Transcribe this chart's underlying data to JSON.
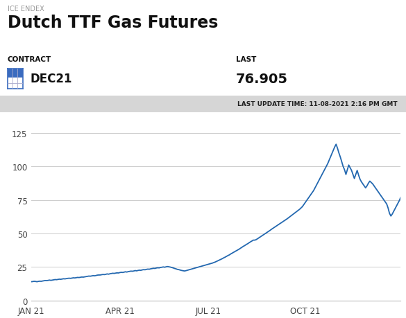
{
  "title_small": "ICE ENDEX",
  "title_large": "Dutch TTF Gas Futures",
  "contract_label": "CONTRACT",
  "contract_value": "DEC21",
  "last_label": "LAST",
  "last_value": "76.905",
  "update_text": "LAST UPDATE TIME: 11-08-2021 2:16 PM GMT",
  "line_color": "#2368b0",
  "background_color": "#ffffff",
  "gray_bar_color": "#d6d6d6",
  "yticks": [
    0,
    25,
    50,
    75,
    100,
    125
  ],
  "xtick_labels": [
    "JAN 21",
    "APR 21",
    "JUL 21",
    "OCT 21"
  ],
  "price_data": [
    14.0,
    14.1,
    14.3,
    14.2,
    14.0,
    14.2,
    14.4,
    14.3,
    14.5,
    14.7,
    14.9,
    14.8,
    15.0,
    15.2,
    15.0,
    15.2,
    15.4,
    15.6,
    15.5,
    15.7,
    15.9,
    15.8,
    16.0,
    16.2,
    16.1,
    16.3,
    16.5,
    16.6,
    16.5,
    16.7,
    16.9,
    16.8,
    17.0,
    17.2,
    17.1,
    17.3,
    17.5,
    17.4,
    17.6,
    17.8,
    18.0,
    18.2,
    18.1,
    18.3,
    18.5,
    18.4,
    18.6,
    18.9,
    19.0,
    19.0,
    19.2,
    19.4,
    19.3,
    19.5,
    19.8,
    19.6,
    19.9,
    20.1,
    20.3,
    20.2,
    20.4,
    20.6,
    20.5,
    20.8,
    21.0,
    20.9,
    21.1,
    21.4,
    21.2,
    21.5,
    21.7,
    21.9,
    21.8,
    22.0,
    22.3,
    22.1,
    22.4,
    22.6,
    22.5,
    22.8,
    23.0,
    22.9,
    23.2,
    23.4,
    23.3,
    23.6,
    23.8,
    24.0,
    23.9,
    24.2,
    24.4,
    24.3,
    24.6,
    24.8,
    25.0,
    24.8,
    25.1,
    25.3,
    25.1,
    24.9,
    24.6,
    24.3,
    23.9,
    23.6,
    23.2,
    23.0,
    22.7,
    22.4,
    22.2,
    22.0,
    22.2,
    22.5,
    22.8,
    23.1,
    23.4,
    23.7,
    24.0,
    24.3,
    24.6,
    24.9,
    25.2,
    25.5,
    25.8,
    26.1,
    26.4,
    26.7,
    27.0,
    27.3,
    27.6,
    27.9,
    28.3,
    28.7,
    29.2,
    29.7,
    30.2,
    30.7,
    31.2,
    31.8,
    32.3,
    32.9,
    33.5,
    34.0,
    34.7,
    35.3,
    35.9,
    36.5,
    37.1,
    37.7,
    38.3,
    39.0,
    39.7,
    40.4,
    41.0,
    41.7,
    42.3,
    43.0,
    43.7,
    44.3,
    45.0,
    45.0,
    45.3,
    46.0,
    46.7,
    47.4,
    48.1,
    48.8,
    49.5,
    50.2,
    50.9,
    51.6,
    52.3,
    53.1,
    53.8,
    54.5,
    55.2,
    55.9,
    56.6,
    57.3,
    58.0,
    58.7,
    59.4,
    60.1,
    60.8,
    61.6,
    62.4,
    63.2,
    64.0,
    64.8,
    65.6,
    66.4,
    67.2,
    68.0,
    69.0,
    70.0,
    71.5,
    73.0,
    74.5,
    76.0,
    77.5,
    79.0,
    80.5,
    82.0,
    84.0,
    86.0,
    88.0,
    90.0,
    92.0,
    94.0,
    96.0,
    98.0,
    100.0,
    102.0,
    104.5,
    107.0,
    109.5,
    112.0,
    114.5,
    116.5,
    113.5,
    110.0,
    107.0,
    103.5,
    100.0,
    97.5,
    94.0,
    97.5,
    101.0,
    99.0,
    97.0,
    94.0,
    91.0,
    94.0,
    97.0,
    93.5,
    90.5,
    88.5,
    87.0,
    85.5,
    84.0,
    85.5,
    87.5,
    89.0,
    88.0,
    87.0,
    85.5,
    84.0,
    82.5,
    81.0,
    79.5,
    78.0,
    76.5,
    75.0,
    73.5,
    72.0,
    69.0,
    65.0,
    63.0,
    64.5,
    66.5,
    68.5,
    70.5,
    72.5,
    74.5,
    76.905
  ]
}
